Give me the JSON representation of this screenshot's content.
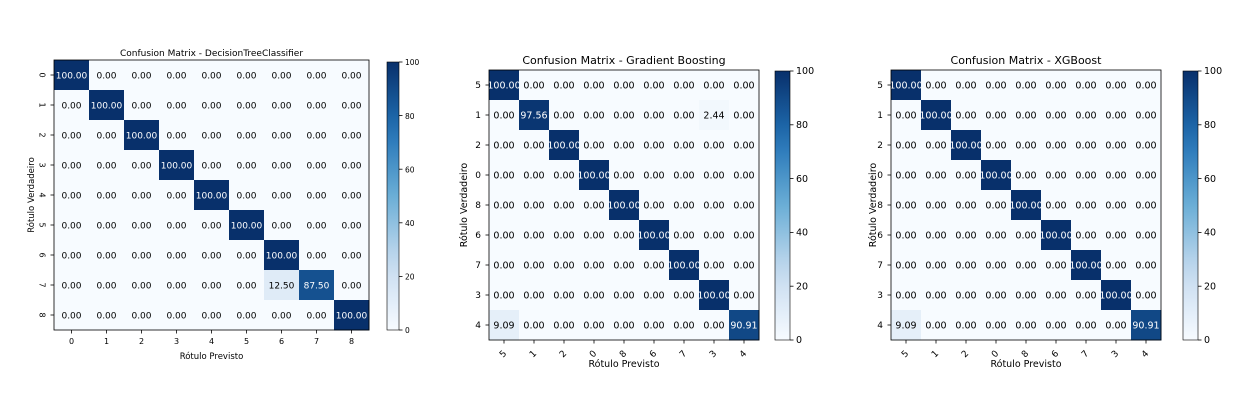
{
  "colors": {
    "cmap_low": "#f7fbff",
    "cmap_mid1": "#c6dbef",
    "cmap_mid2": "#6baed6",
    "cmap_mid3": "#2171b5",
    "cmap_high": "#08306b",
    "text_dark": "#000000",
    "text_light": "#ffffff"
  },
  "chart_data": [
    {
      "type": "heatmap",
      "title": "Confusion Matrix - DecisionTreeClassifier",
      "xlabel": "Rótulo Previsto",
      "ylabel": "Rótulo Verdadeiro",
      "x_categories": [
        "0",
        "1",
        "2",
        "3",
        "4",
        "5",
        "6",
        "7",
        "8"
      ],
      "y_categories": [
        "0",
        "1",
        "2",
        "3",
        "4",
        "5",
        "6",
        "7",
        "8"
      ],
      "values": [
        [
          100,
          0,
          0,
          0,
          0,
          0,
          0,
          0,
          0
        ],
        [
          0,
          100,
          0,
          0,
          0,
          0,
          0,
          0,
          0
        ],
        [
          0,
          0,
          100,
          0,
          0,
          0,
          0,
          0,
          0
        ],
        [
          0,
          0,
          0,
          100,
          0,
          0,
          0,
          0,
          0
        ],
        [
          0,
          0,
          0,
          0,
          100,
          0,
          0,
          0,
          0
        ],
        [
          0,
          0,
          0,
          0,
          0,
          100,
          0,
          0,
          0
        ],
        [
          0,
          0,
          0,
          0,
          0,
          0,
          100,
          0,
          0
        ],
        [
          0,
          0,
          0,
          0,
          0,
          0,
          12.5,
          87.5,
          0
        ],
        [
          0,
          0,
          0,
          0,
          0,
          0,
          0,
          0,
          100
        ]
      ],
      "colorbar_range": [
        0,
        100
      ],
      "colorbar_ticks": [
        "0",
        "20",
        "40",
        "60",
        "80",
        "100"
      ],
      "ytick_rotation": "vertical",
      "xtick_rotation": "none",
      "grid": false
    },
    {
      "type": "heatmap",
      "title": "Confusion Matrix - Gradient Boosting",
      "xlabel": "Rótulo Previsto",
      "ylabel": "Rótulo Verdadeiro",
      "x_categories": [
        "5",
        "1",
        "2",
        "0",
        "8",
        "6",
        "7",
        "3",
        "4"
      ],
      "y_categories": [
        "5",
        "1",
        "2",
        "0",
        "8",
        "6",
        "7",
        "3",
        "4"
      ],
      "values": [
        [
          100,
          0,
          0,
          0,
          0,
          0,
          0,
          0,
          0
        ],
        [
          0,
          97.56,
          0,
          0,
          0,
          0,
          0,
          2.44,
          0
        ],
        [
          0,
          0,
          100,
          0,
          0,
          0,
          0,
          0,
          0
        ],
        [
          0,
          0,
          0,
          100,
          0,
          0,
          0,
          0,
          0
        ],
        [
          0,
          0,
          0,
          0,
          100,
          0,
          0,
          0,
          0
        ],
        [
          0,
          0,
          0,
          0,
          0,
          100,
          0,
          0,
          0
        ],
        [
          0,
          0,
          0,
          0,
          0,
          0,
          100,
          0,
          0
        ],
        [
          0,
          0,
          0,
          0,
          0,
          0,
          0,
          100,
          0
        ],
        [
          9.09,
          0,
          0,
          0,
          0,
          0,
          0,
          0,
          90.91
        ]
      ],
      "colorbar_range": [
        0,
        100
      ],
      "colorbar_ticks": [
        "0",
        "20",
        "40",
        "60",
        "80",
        "100"
      ],
      "ytick_rotation": "horizontal",
      "xtick_rotation": "diagonal",
      "grid": false
    },
    {
      "type": "heatmap",
      "title": "Confusion Matrix - XGBoost",
      "xlabel": "Rótulo Previsto",
      "ylabel": "Rótulo Verdadeiro",
      "x_categories": [
        "5",
        "1",
        "2",
        "0",
        "8",
        "6",
        "7",
        "3",
        "4"
      ],
      "y_categories": [
        "5",
        "1",
        "2",
        "0",
        "8",
        "6",
        "7",
        "3",
        "4"
      ],
      "values": [
        [
          100,
          0,
          0,
          0,
          0,
          0,
          0,
          0,
          0
        ],
        [
          0,
          100,
          0,
          0,
          0,
          0,
          0,
          0,
          0
        ],
        [
          0,
          0,
          100,
          0,
          0,
          0,
          0,
          0,
          0
        ],
        [
          0,
          0,
          0,
          100,
          0,
          0,
          0,
          0,
          0
        ],
        [
          0,
          0,
          0,
          0,
          100,
          0,
          0,
          0,
          0
        ],
        [
          0,
          0,
          0,
          0,
          0,
          100,
          0,
          0,
          0
        ],
        [
          0,
          0,
          0,
          0,
          0,
          0,
          100,
          0,
          0
        ],
        [
          0,
          0,
          0,
          0,
          0,
          0,
          0,
          100,
          0
        ],
        [
          9.09,
          0,
          0,
          0,
          0,
          0,
          0,
          0,
          90.91
        ]
      ],
      "colorbar_range": [
        0,
        100
      ],
      "colorbar_ticks": [
        "0",
        "20",
        "40",
        "60",
        "80",
        "100"
      ],
      "ytick_rotation": "horizontal",
      "xtick_rotation": "diagonal",
      "grid": false
    }
  ]
}
